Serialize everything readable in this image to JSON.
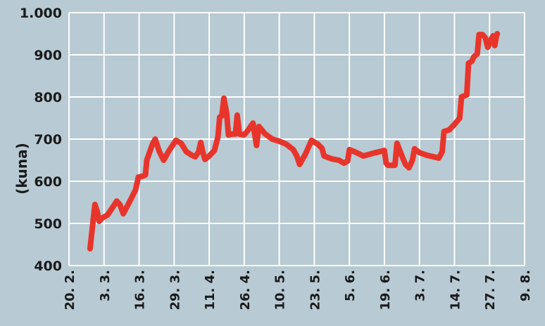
{
  "chart_data": {
    "type": "line",
    "ylabel": "(kuna)",
    "ylim": [
      400,
      1000
    ],
    "yticks": [
      400,
      500,
      600,
      700,
      800,
      900,
      1000
    ],
    "ytick_labels": [
      "400",
      "500",
      "600",
      "700",
      "800",
      "900",
      "1.000"
    ],
    "xtick_labels": [
      "20. 2.",
      "3. 3.",
      "16. 3.",
      "29. 3.",
      "11. 4.",
      "26. 4.",
      "10. 5.",
      "23. 5.",
      "5. 6.",
      "19. 6.",
      "3. 7.",
      "14. 7.",
      "27. 7.",
      "9. 8."
    ],
    "grid": true,
    "series_color": "#e8352b",
    "series": [
      {
        "values": [
          {
            "x": 0.6,
            "y": 440
          },
          {
            "x": 0.68,
            "y": 500
          },
          {
            "x": 0.74,
            "y": 545
          },
          {
            "x": 0.8,
            "y": 530
          },
          {
            "x": 0.86,
            "y": 505
          },
          {
            "x": 0.95,
            "y": 513
          },
          {
            "x": 1.1,
            "y": 520
          },
          {
            "x": 1.3,
            "y": 545
          },
          {
            "x": 1.36,
            "y": 553
          },
          {
            "x": 1.45,
            "y": 545
          },
          {
            "x": 1.55,
            "y": 523
          },
          {
            "x": 1.75,
            "y": 555
          },
          {
            "x": 1.9,
            "y": 580
          },
          {
            "x": 1.98,
            "y": 610
          },
          {
            "x": 2.1,
            "y": 612
          },
          {
            "x": 2.18,
            "y": 615
          },
          {
            "x": 2.22,
            "y": 650
          },
          {
            "x": 2.38,
            "y": 688
          },
          {
            "x": 2.46,
            "y": 700
          },
          {
            "x": 2.58,
            "y": 670
          },
          {
            "x": 2.7,
            "y": 650
          },
          {
            "x": 2.85,
            "y": 672
          },
          {
            "x": 3.05,
            "y": 697
          },
          {
            "x": 3.2,
            "y": 690
          },
          {
            "x": 3.35,
            "y": 670
          },
          {
            "x": 3.5,
            "y": 662
          },
          {
            "x": 3.6,
            "y": 658
          },
          {
            "x": 3.7,
            "y": 670
          },
          {
            "x": 3.76,
            "y": 692
          },
          {
            "x": 3.82,
            "y": 668
          },
          {
            "x": 3.88,
            "y": 652
          },
          {
            "x": 4.0,
            "y": 660
          },
          {
            "x": 4.15,
            "y": 673
          },
          {
            "x": 4.25,
            "y": 705
          },
          {
            "x": 4.3,
            "y": 752
          },
          {
            "x": 4.36,
            "y": 755
          },
          {
            "x": 4.42,
            "y": 797
          },
          {
            "x": 4.5,
            "y": 760
          },
          {
            "x": 4.55,
            "y": 710
          },
          {
            "x": 4.65,
            "y": 712
          },
          {
            "x": 4.75,
            "y": 712
          },
          {
            "x": 4.8,
            "y": 757
          },
          {
            "x": 4.86,
            "y": 712
          },
          {
            "x": 5.0,
            "y": 710
          },
          {
            "x": 5.1,
            "y": 720
          },
          {
            "x": 5.25,
            "y": 738
          },
          {
            "x": 5.35,
            "y": 685
          },
          {
            "x": 5.42,
            "y": 730
          },
          {
            "x": 5.6,
            "y": 712
          },
          {
            "x": 5.8,
            "y": 700
          },
          {
            "x": 6.0,
            "y": 695
          },
          {
            "x": 6.2,
            "y": 688
          },
          {
            "x": 6.4,
            "y": 675
          },
          {
            "x": 6.5,
            "y": 660
          },
          {
            "x": 6.58,
            "y": 640
          },
          {
            "x": 6.75,
            "y": 665
          },
          {
            "x": 6.92,
            "y": 697
          },
          {
            "x": 7.1,
            "y": 688
          },
          {
            "x": 7.22,
            "y": 678
          },
          {
            "x": 7.28,
            "y": 660
          },
          {
            "x": 7.5,
            "y": 653
          },
          {
            "x": 7.7,
            "y": 650
          },
          {
            "x": 7.85,
            "y": 643
          },
          {
            "x": 7.95,
            "y": 648
          },
          {
            "x": 8.0,
            "y": 675
          },
          {
            "x": 8.15,
            "y": 670
          },
          {
            "x": 8.4,
            "y": 660
          },
          {
            "x": 8.7,
            "y": 667
          },
          {
            "x": 9.0,
            "y": 673
          },
          {
            "x": 9.05,
            "y": 643
          },
          {
            "x": 9.1,
            "y": 638
          },
          {
            "x": 9.3,
            "y": 638
          },
          {
            "x": 9.36,
            "y": 690
          },
          {
            "x": 9.5,
            "y": 660
          },
          {
            "x": 9.6,
            "y": 640
          },
          {
            "x": 9.7,
            "y": 632
          },
          {
            "x": 9.8,
            "y": 650
          },
          {
            "x": 9.86,
            "y": 677
          },
          {
            "x": 10.0,
            "y": 668
          },
          {
            "x": 10.2,
            "y": 662
          },
          {
            "x": 10.4,
            "y": 658
          },
          {
            "x": 10.55,
            "y": 655
          },
          {
            "x": 10.65,
            "y": 670
          },
          {
            "x": 10.7,
            "y": 718
          },
          {
            "x": 10.85,
            "y": 722
          },
          {
            "x": 11.0,
            "y": 735
          },
          {
            "x": 11.15,
            "y": 750
          },
          {
            "x": 11.2,
            "y": 800
          },
          {
            "x": 11.35,
            "y": 805
          },
          {
            "x": 11.4,
            "y": 880
          },
          {
            "x": 11.5,
            "y": 885
          },
          {
            "x": 11.55,
            "y": 895
          },
          {
            "x": 11.65,
            "y": 902
          },
          {
            "x": 11.7,
            "y": 948
          },
          {
            "x": 11.8,
            "y": 948
          },
          {
            "x": 11.88,
            "y": 940
          },
          {
            "x": 11.95,
            "y": 918
          },
          {
            "x": 12.05,
            "y": 938
          },
          {
            "x": 12.1,
            "y": 945
          },
          {
            "x": 12.15,
            "y": 922
          },
          {
            "x": 12.2,
            "y": 945
          },
          {
            "x": 12.22,
            "y": 950
          }
        ]
      }
    ]
  }
}
